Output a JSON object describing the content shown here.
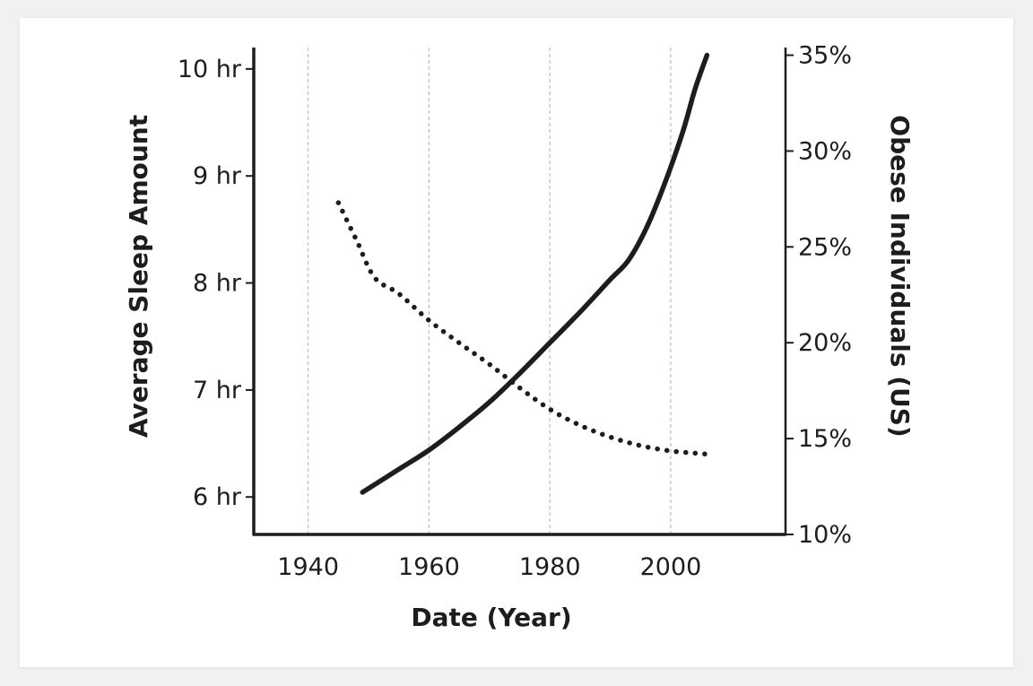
{
  "chart_data": {
    "type": "line",
    "xlabel": "Date (Year)",
    "ylabel_left": "Average Sleep Amount",
    "ylabel_right": "Obese Individuals (US)",
    "xlim": [
      1931,
      2019
    ],
    "ylim_left": [
      5.65,
      10.2
    ],
    "ylim_right": [
      10,
      35.4
    ],
    "x_ticks": [
      1940,
      1960,
      1980,
      2000
    ],
    "x_tick_labels": [
      "1940",
      "1960",
      "1980",
      "2000"
    ],
    "y_left_ticks": [
      6,
      7,
      8,
      9,
      10
    ],
    "y_left_tick_labels": [
      "6 hr",
      "7 hr",
      "8 hr",
      "9 hr",
      "10 hr"
    ],
    "y_right_ticks": [
      10,
      15,
      20,
      25,
      30,
      35
    ],
    "y_right_tick_labels": [
      "10%",
      "15%",
      "20%",
      "25%",
      "30%",
      "35%"
    ],
    "vertical_gridlines": true,
    "series": [
      {
        "style": "solid",
        "axis": "right",
        "x": [
          1949,
          1955,
          1960,
          1965,
          1970,
          1975,
          1980,
          1985,
          1990,
          1993,
          1996,
          1999,
          2002,
          2004,
          2006
        ],
        "values": [
          12.2,
          13.4,
          14.4,
          15.6,
          16.9,
          18.4,
          20.0,
          21.6,
          23.3,
          24.3,
          26.0,
          28.3,
          31.0,
          33.2,
          35.0
        ]
      },
      {
        "style": "dotted",
        "axis": "left",
        "x": [
          1945,
          1948,
          1951,
          1955,
          1960,
          1965,
          1970,
          1975,
          1980,
          1985,
          1990,
          1995,
          2000,
          2004,
          2006
        ],
        "values": [
          8.75,
          8.4,
          8.05,
          7.9,
          7.65,
          7.44,
          7.24,
          7.02,
          6.82,
          6.67,
          6.56,
          6.48,
          6.43,
          6.41,
          6.4
        ]
      }
    ]
  }
}
